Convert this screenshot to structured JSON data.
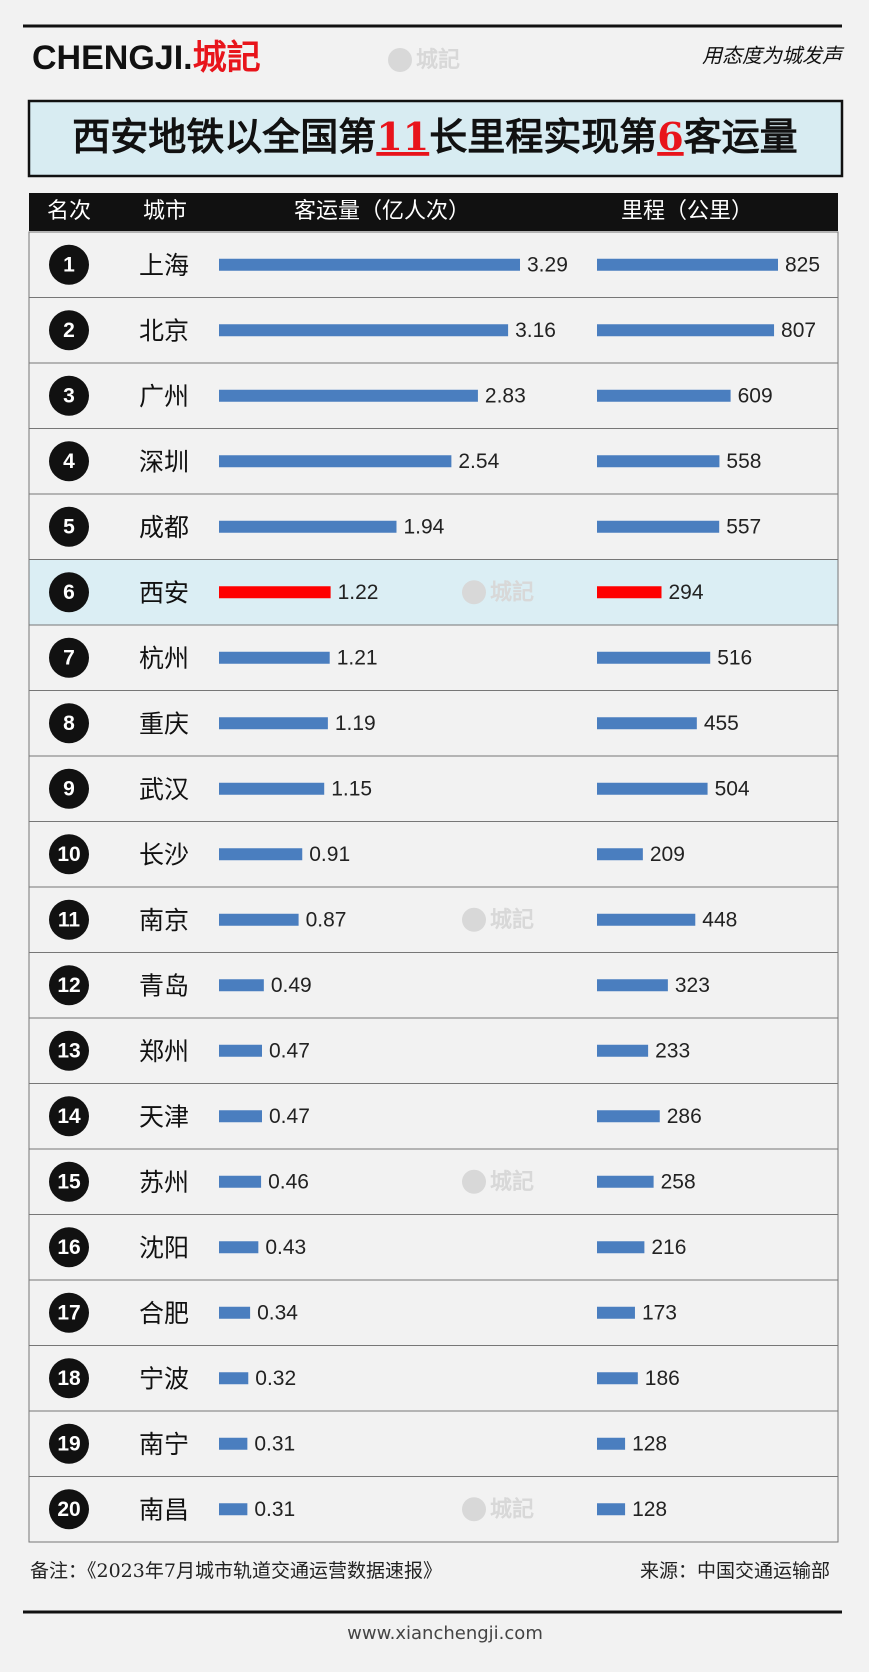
{
  "header": {
    "brand": "CHENGJI.",
    "brand_cn": "城記",
    "slogan": "用态度为城发声",
    "watermark": "城記"
  },
  "title": [
    "西安地铁以全国第",
    "11",
    "长里程实现第",
    "6",
    "客运量"
  ],
  "columns": [
    "名次",
    "城市",
    "客运量（亿人次）",
    "里程（公里）"
  ],
  "bar_color": "#4a7ebf",
  "highlight_color": "#ff0000",
  "highlight_rank": 6,
  "rows": [
    {
      "rank": 1,
      "city": "上海",
      "ridership": 3.29,
      "mileage": 825
    },
    {
      "rank": 2,
      "city": "北京",
      "ridership": 3.16,
      "mileage": 807
    },
    {
      "rank": 3,
      "city": "广州",
      "ridership": 2.83,
      "mileage": 609
    },
    {
      "rank": 4,
      "city": "深圳",
      "ridership": 2.54,
      "mileage": 558
    },
    {
      "rank": 5,
      "city": "成都",
      "ridership": 1.94,
      "mileage": 557
    },
    {
      "rank": 6,
      "city": "西安",
      "ridership": 1.22,
      "mileage": 294
    },
    {
      "rank": 7,
      "city": "杭州",
      "ridership": 1.21,
      "mileage": 516
    },
    {
      "rank": 8,
      "city": "重庆",
      "ridership": 1.19,
      "mileage": 455
    },
    {
      "rank": 9,
      "city": "武汉",
      "ridership": 1.15,
      "mileage": 504
    },
    {
      "rank": 10,
      "city": "长沙",
      "ridership": 0.91,
      "mileage": 209
    },
    {
      "rank": 11,
      "city": "南京",
      "ridership": 0.87,
      "mileage": 448
    },
    {
      "rank": 12,
      "city": "青岛",
      "ridership": 0.49,
      "mileage": 323
    },
    {
      "rank": 13,
      "city": "郑州",
      "ridership": 0.47,
      "mileage": 233
    },
    {
      "rank": 14,
      "city": "天津",
      "ridership": 0.47,
      "mileage": 286
    },
    {
      "rank": 15,
      "city": "苏州",
      "ridership": 0.46,
      "mileage": 258
    },
    {
      "rank": 16,
      "city": "沈阳",
      "ridership": 0.43,
      "mileage": 216
    },
    {
      "rank": 17,
      "city": "合肥",
      "ridership": 0.34,
      "mileage": 173
    },
    {
      "rank": 18,
      "city": "宁波",
      "ridership": 0.32,
      "mileage": 186
    },
    {
      "rank": 19,
      "city": "南宁",
      "ridership": 0.31,
      "mileage": 128
    },
    {
      "rank": 20,
      "city": "南昌",
      "ridership": 0.31,
      "mileage": 128
    }
  ],
  "footer": {
    "note": "备注：《2023年7月城市轨道交通运营数据速报》",
    "source": "来源：中国交通运输部",
    "url": "www.xianchengji.com"
  }
}
